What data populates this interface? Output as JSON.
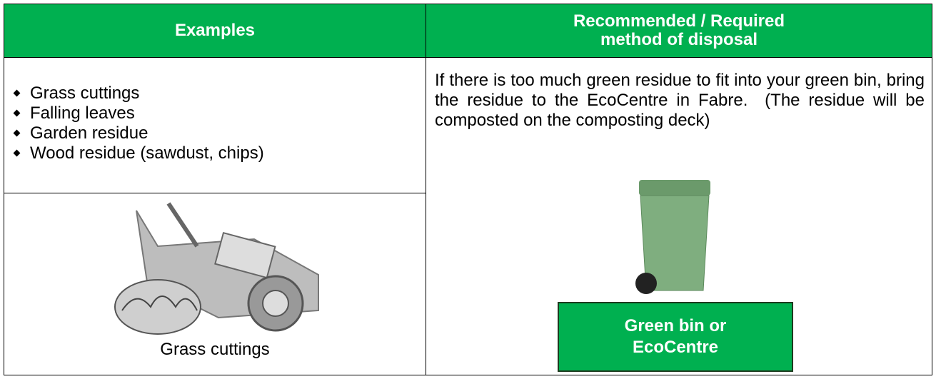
{
  "table": {
    "headers": [
      {
        "lines": [
          "Examples"
        ]
      },
      {
        "lines": [
          "Recommended / Required",
          "method of disposal"
        ]
      }
    ],
    "examples": [
      "Grass cuttings",
      "Falling leaves",
      "Garden residue",
      "Wood residue (sawdust, chips)"
    ],
    "image_caption": "Grass cuttings",
    "disposal_text": "If there is too much green residue to fit into your green bin, bring the residue to the EcoCentre in Fabre.  (The residue will be composted on the composting deck)",
    "disposal_method": {
      "lines": [
        "Green bin or",
        "EcoCentre"
      ]
    }
  }
}
